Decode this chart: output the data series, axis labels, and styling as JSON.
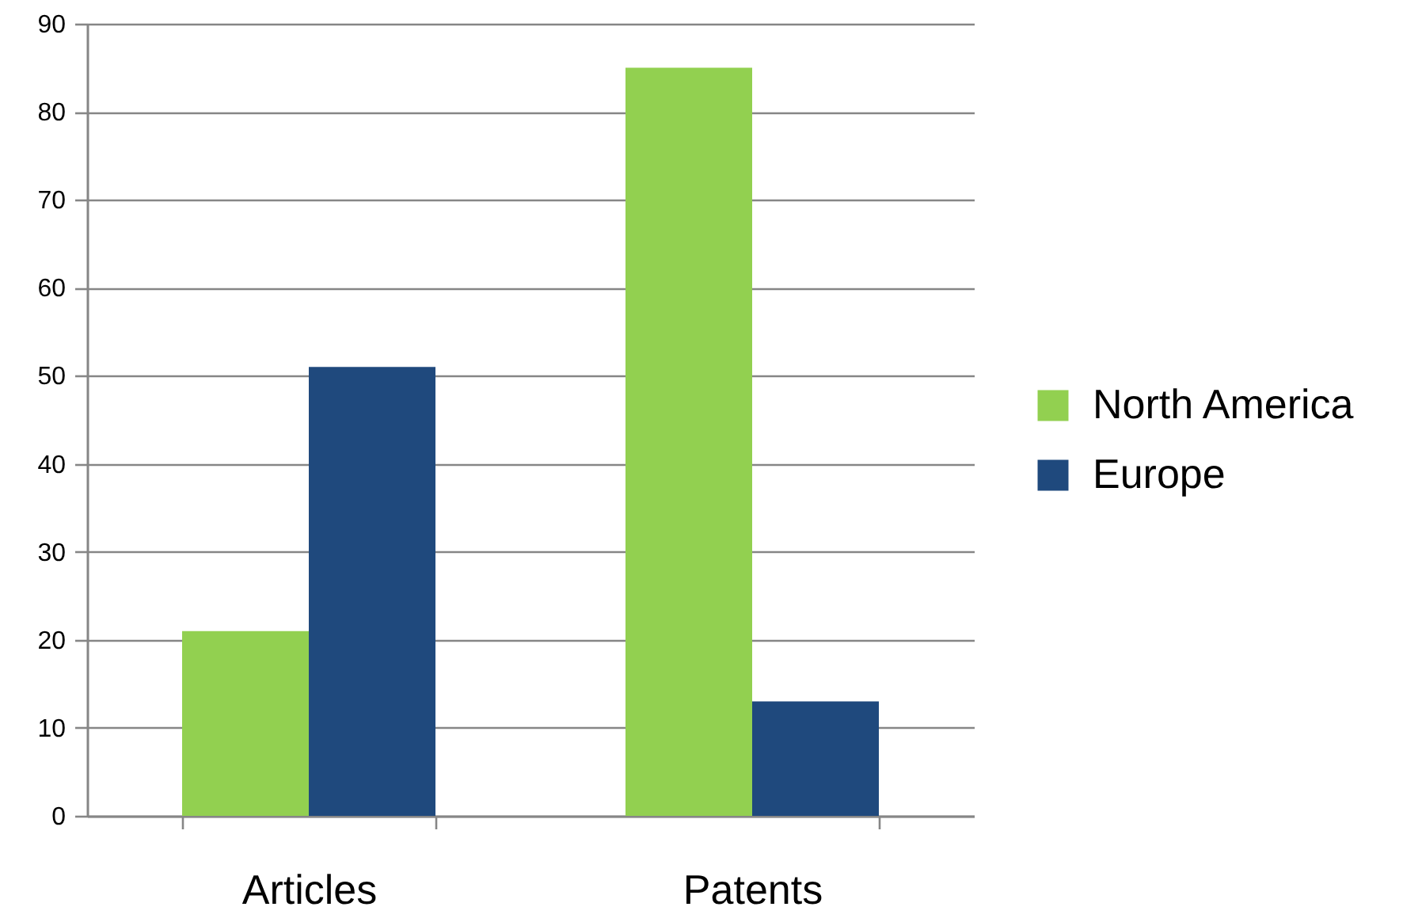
{
  "chart_data": {
    "type": "bar",
    "categories": [
      "Articles",
      "Patents"
    ],
    "series": [
      {
        "name": "North America",
        "color": "#92d050",
        "values": [
          21,
          85
        ]
      },
      {
        "name": "Europe",
        "color": "#1f497d",
        "values": [
          51,
          13
        ]
      }
    ],
    "ylim": [
      0,
      90
    ],
    "yticks": [
      0,
      10,
      20,
      30,
      40,
      50,
      60,
      70,
      80,
      90
    ],
    "grid": "y",
    "legend": "right"
  }
}
